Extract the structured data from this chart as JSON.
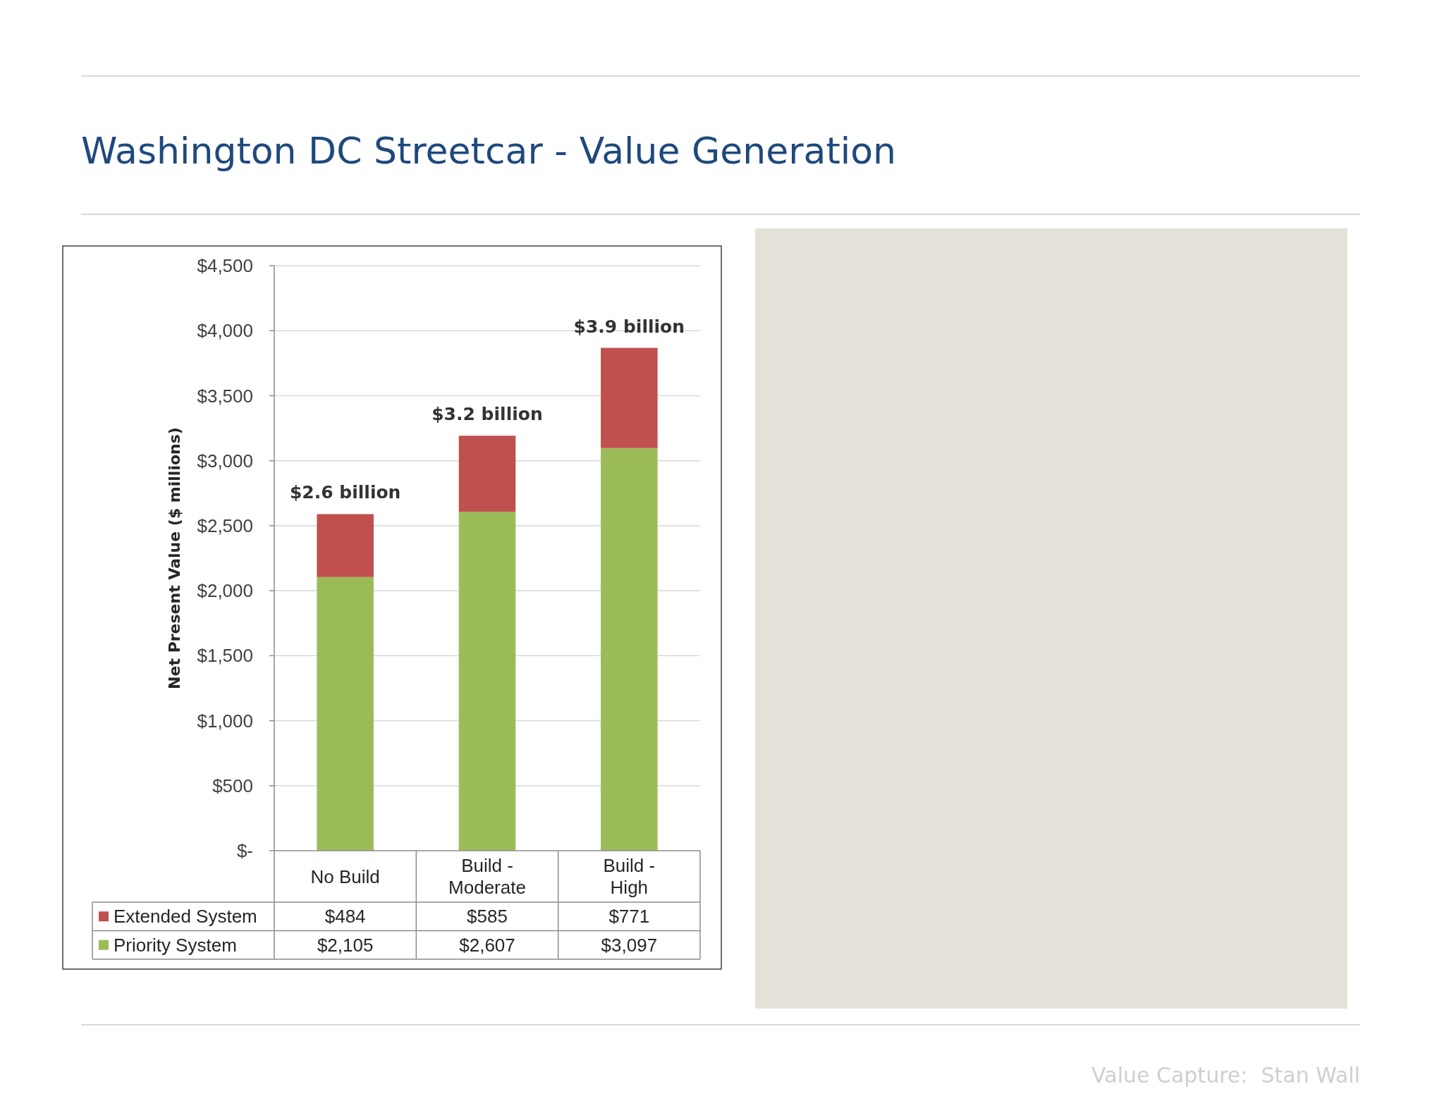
{
  "chart_data": {
    "type": "bar",
    "title": "Washington DC Streetcar - Value Generation",
    "ylabel": "Net Present Value ($ millions)",
    "categories": [
      "No Build",
      "Build - Moderate",
      "Build - High"
    ],
    "stacked": true,
    "series": [
      {
        "name": "Priority System",
        "color": "#9bbb59",
        "values": [
          2105,
          2607,
          3097
        ],
        "value_labels": [
          "$2,105",
          "$2,607",
          "$3,097"
        ]
      },
      {
        "name": "Extended System",
        "color": "#c0504d",
        "values": [
          484,
          585,
          771
        ],
        "value_labels": [
          "$484",
          "$585",
          "$771"
        ]
      }
    ],
    "totals": [
      "$2.6 billion",
      "$3.2 billion",
      "$3.9 billion"
    ],
    "ylim": [
      0,
      4500
    ],
    "yticks": [
      {
        "value": 0,
        "label": "$-"
      },
      {
        "value": 500,
        "label": "$500"
      },
      {
        "value": 1000,
        "label": "$1,000"
      },
      {
        "value": 1500,
        "label": "$1,500"
      },
      {
        "value": 2000,
        "label": "$2,000"
      },
      {
        "value": 2500,
        "label": "$2,500"
      },
      {
        "value": 3000,
        "label": "$3,000"
      },
      {
        "value": 3500,
        "label": "$3,500"
      },
      {
        "value": 4000,
        "label": "$4,000"
      },
      {
        "value": 4500,
        "label": "$4,500"
      }
    ],
    "grid": "y",
    "legend": "bottom",
    "annotations": [
      "Value Capture:  Stan Wall"
    ]
  }
}
